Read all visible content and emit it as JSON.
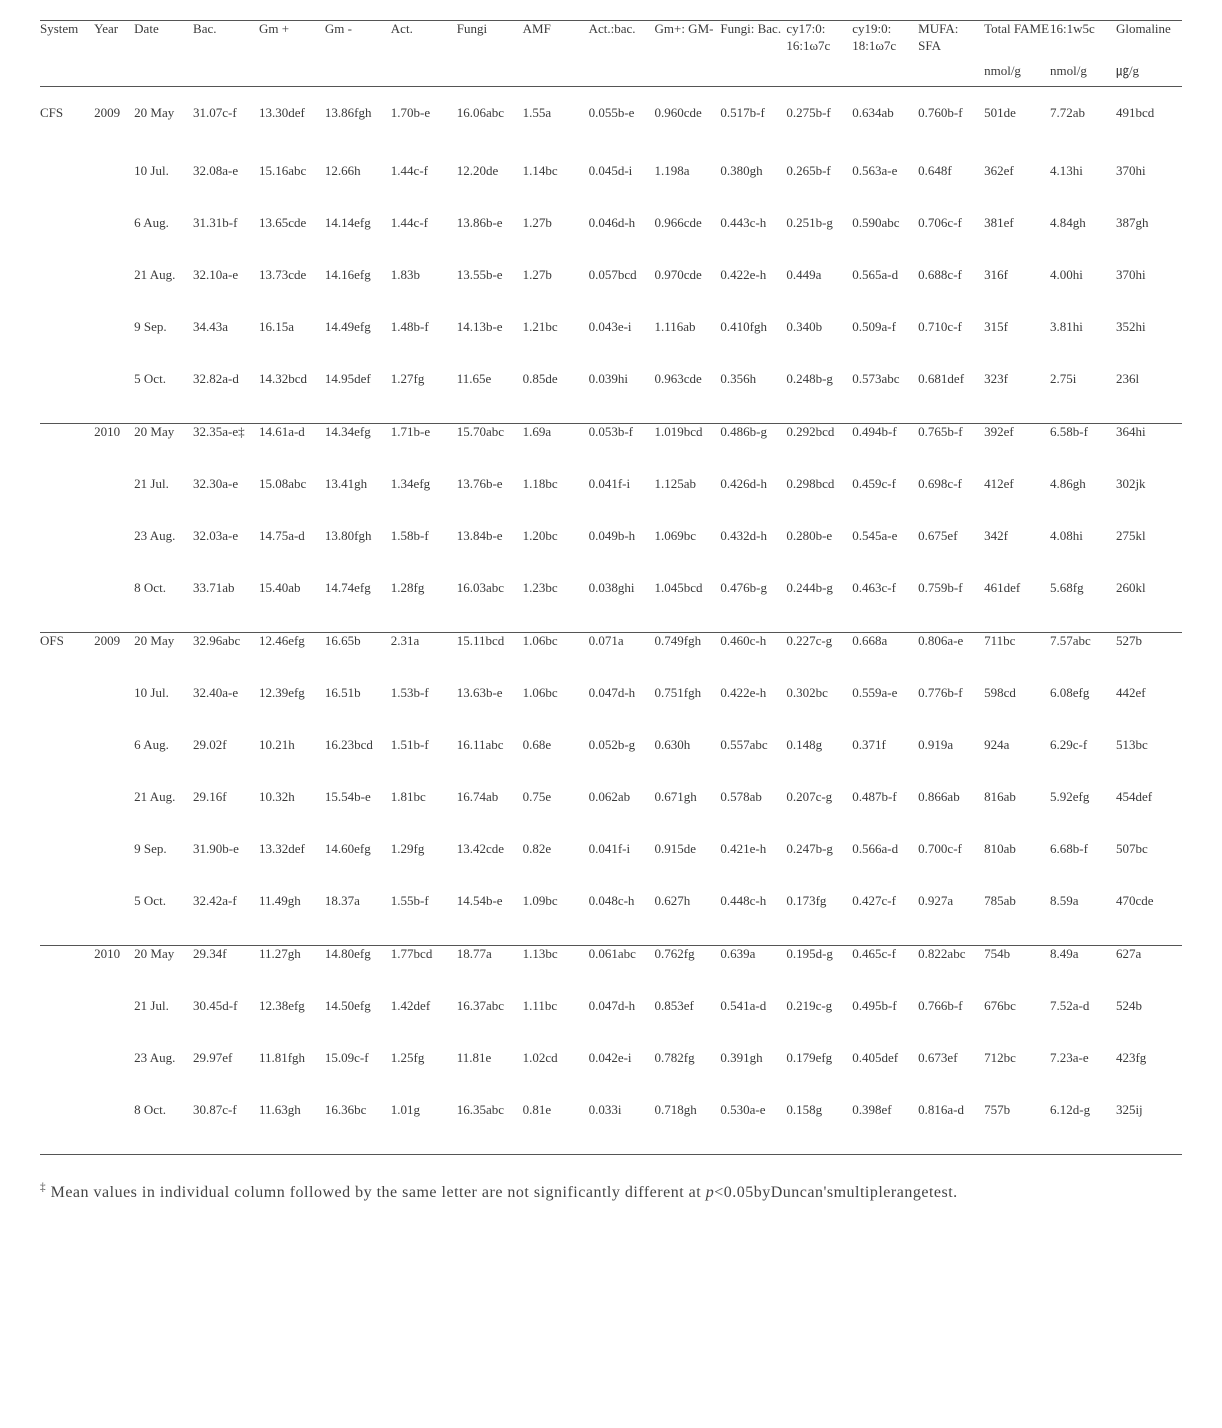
{
  "headers": {
    "main": [
      "System",
      "Year",
      "Date",
      "Bac.",
      "Gm +",
      "Gm -",
      "Act.",
      "Fungi",
      "AMF",
      "Act.:bac.",
      "Gm+: GM-",
      "Fungi: Bac.",
      "cy17:0: 16:1ω7c",
      "cy19:0: 18:1ω7c",
      "MUFA: SFA",
      "Total FAME",
      "16:1w5c",
      "Glomaline"
    ],
    "units": [
      "",
      "",
      "",
      "",
      "",
      "",
      "",
      "",
      "",
      "",
      "",
      "",
      "",
      "",
      "",
      "nmol/g",
      "nmol/g",
      "㎍/g"
    ]
  },
  "groups": [
    {
      "system": "CFS",
      "blocks": [
        {
          "year": "2009",
          "rows": [
            {
              "d": "20 May",
              "v": [
                "31.07c-f",
                "13.30def",
                "13.86fgh",
                "1.70b-e",
                "16.06abc",
                "1.55a",
                "0.055b-e",
                "0.960cde",
                "0.517b-f",
                "0.275b-f",
                "0.634ab",
                "0.760b-f",
                "501de",
                "7.72ab",
                "491bcd"
              ]
            },
            {
              "d": "10 Jul.",
              "v": [
                "32.08a-e",
                "15.16abc",
                "12.66h",
                "1.44c-f",
                "12.20de",
                "1.14bc",
                "0.045d-i",
                "1.198a",
                "0.380gh",
                "0.265b-f",
                "0.563a-e",
                "0.648f",
                "362ef",
                "4.13hi",
                "370hi"
              ]
            },
            {
              "d": "6 Aug.",
              "v": [
                "31.31b-f",
                "13.65cde",
                "14.14efg",
                "1.44c-f",
                "13.86b-e",
                "1.27b",
                "0.046d-h",
                "0.966cde",
                "0.443c-h",
                "0.251b-g",
                "0.590abc",
                "0.706c-f",
                "381ef",
                "4.84gh",
                "387gh"
              ]
            },
            {
              "d": "21 Aug.",
              "v": [
                "32.10a-e",
                "13.73cde",
                "14.16efg",
                "1.83b",
                "13.55b-e",
                "1.27b",
                "0.057bcd",
                "0.970cde",
                "0.422e-h",
                "0.449a",
                "0.565a-d",
                "0.688c-f",
                "316f",
                "4.00hi",
                "370hi"
              ]
            },
            {
              "d": "9 Sep.",
              "v": [
                "34.43a",
                "16.15a",
                "14.49efg",
                "1.48b-f",
                "14.13b-e",
                "1.21bc",
                "0.043e-i",
                "1.116ab",
                "0.410fgh",
                "0.340b",
                "0.509a-f",
                "0.710c-f",
                "315f",
                "3.81hi",
                "352hi"
              ]
            },
            {
              "d": "5 Oct.",
              "v": [
                "32.82a-d",
                "14.32bcd",
                "14.95def",
                "1.27fg",
                "11.65e",
                "0.85de",
                "0.039hi",
                "0.963cde",
                "0.356h",
                "0.248b-g",
                "0.573abc",
                "0.681def",
                "323f",
                "2.75i",
                "236l"
              ]
            }
          ]
        },
        {
          "year": "2010",
          "rows": [
            {
              "d": "20 May",
              "v": [
                "32.35a-e‡",
                "14.61a-d",
                "14.34efg",
                "1.71b-e",
                "15.70abc",
                "1.69a",
                "0.053b-f",
                "1.019bcd",
                "0.486b-g",
                "0.292bcd",
                "0.494b-f",
                "0.765b-f",
                "392ef",
                "6.58b-f",
                "364hi"
              ]
            },
            {
              "d": "21 Jul.",
              "v": [
                "32.30a-e",
                "15.08abc",
                "13.41gh",
                "1.34efg",
                "13.76b-e",
                "1.18bc",
                "0.041f-i",
                "1.125ab",
                "0.426d-h",
                "0.298bcd",
                "0.459c-f",
                "0.698c-f",
                "412ef",
                "4.86gh",
                "302jk"
              ]
            },
            {
              "d": "23 Aug.",
              "v": [
                "32.03a-e",
                "14.75a-d",
                "13.80fgh",
                "1.58b-f",
                "13.84b-e",
                "1.20bc",
                "0.049b-h",
                "1.069bc",
                "0.432d-h",
                "0.280b-e",
                "0.545a-e",
                "0.675ef",
                "342f",
                "4.08hi",
                "275kl"
              ]
            },
            {
              "d": "8 Oct.",
              "v": [
                "33.71ab",
                "15.40ab",
                "14.74efg",
                "1.28fg",
                "16.03abc",
                "1.23bc",
                "0.038ghi",
                "1.045bcd",
                "0.476b-g",
                "0.244b-g",
                "0.463c-f",
                "0.759b-f",
                "461def",
                "5.68fg",
                "260kl"
              ]
            }
          ]
        }
      ]
    },
    {
      "system": "OFS",
      "blocks": [
        {
          "year": "2009",
          "rows": [
            {
              "d": "20 May",
              "v": [
                "32.96abc",
                "12.46efg",
                "16.65b",
                "2.31a",
                "15.11bcd",
                "1.06bc",
                "0.071a",
                "0.749fgh",
                "0.460c-h",
                "0.227c-g",
                "0.668a",
                "0.806a-e",
                "711bc",
                "7.57abc",
                "527b"
              ]
            },
            {
              "d": "10 Jul.",
              "v": [
                "32.40a-e",
                "12.39efg",
                "16.51b",
                "1.53b-f",
                "13.63b-e",
                "1.06bc",
                "0.047d-h",
                "0.751fgh",
                "0.422e-h",
                "0.302bc",
                "0.559a-e",
                "0.776b-f",
                "598cd",
                "6.08efg",
                "442ef"
              ]
            },
            {
              "d": "6 Aug.",
              "v": [
                "29.02f",
                "10.21h",
                "16.23bcd",
                "1.51b-f",
                "16.11abc",
                "0.68e",
                "0.052b-g",
                "0.630h",
                "0.557abc",
                "0.148g",
                "0.371f",
                "0.919a",
                "924a",
                "6.29c-f",
                "513bc"
              ]
            },
            {
              "d": "21 Aug.",
              "v": [
                "29.16f",
                "10.32h",
                "15.54b-e",
                "1.81bc",
                "16.74ab",
                "0.75e",
                "0.062ab",
                "0.671gh",
                "0.578ab",
                "0.207c-g",
                "0.487b-f",
                "0.866ab",
                "816ab",
                "5.92efg",
                "454def"
              ]
            },
            {
              "d": "9 Sep.",
              "v": [
                "31.90b-e",
                "13.32def",
                "14.60efg",
                "1.29fg",
                "13.42cde",
                "0.82e",
                "0.041f-i",
                "0.915de",
                "0.421e-h",
                "0.247b-g",
                "0.566a-d",
                "0.700c-f",
                "810ab",
                "6.68b-f",
                "507bc"
              ]
            },
            {
              "d": "5 Oct.",
              "v": [
                "32.42a-f",
                "11.49gh",
                "18.37a",
                "1.55b-f",
                "14.54b-e",
                "1.09bc",
                "0.048c-h",
                "0.627h",
                "0.448c-h",
                "0.173fg",
                "0.427c-f",
                "0.927a",
                "785ab",
                "8.59a",
                "470cde"
              ]
            }
          ]
        },
        {
          "year": "2010",
          "rows": [
            {
              "d": "20 May",
              "v": [
                "29.34f",
                "11.27gh",
                "14.80efg",
                "1.77bcd",
                "18.77a",
                "1.13bc",
                "0.061abc",
                "0.762fg",
                "0.639a",
                "0.195d-g",
                "0.465c-f",
                "0.822abc",
                "754b",
                "8.49a",
                "627a"
              ]
            },
            {
              "d": "21 Jul.",
              "v": [
                "30.45d-f",
                "12.38efg",
                "14.50efg",
                "1.42def",
                "16.37abc",
                "1.11bc",
                "0.047d-h",
                "0.853ef",
                "0.541a-d",
                "0.219c-g",
                "0.495b-f",
                "0.766b-f",
                "676bc",
                "7.52a-d",
                "524b"
              ]
            },
            {
              "d": "23 Aug.",
              "v": [
                "29.97ef",
                "11.81fgh",
                "15.09c-f",
                "1.25fg",
                "11.81e",
                "1.02cd",
                "0.042e-i",
                "0.782fg",
                "0.391gh",
                "0.179efg",
                "0.405def",
                "0.673ef",
                "712bc",
                "7.23a-e",
                "423fg"
              ]
            },
            {
              "d": "8 Oct.",
              "v": [
                "30.87c-f",
                "11.63gh",
                "16.36bc",
                "1.01g",
                "16.35abc",
                "0.81e",
                "0.033i",
                "0.718gh",
                "0.530a-e",
                "0.158g",
                "0.398ef",
                "0.816a-d",
                "757b",
                "6.12d-g",
                "325ij"
              ]
            }
          ]
        }
      ]
    }
  ],
  "footnote": {
    "mark": "‡",
    "text_a": "Mean values in individual column followed by the same letter are not significantly different at ",
    "pval": "p",
    "text_b": "<0.05byDuncan'smultiplerangetest."
  }
}
